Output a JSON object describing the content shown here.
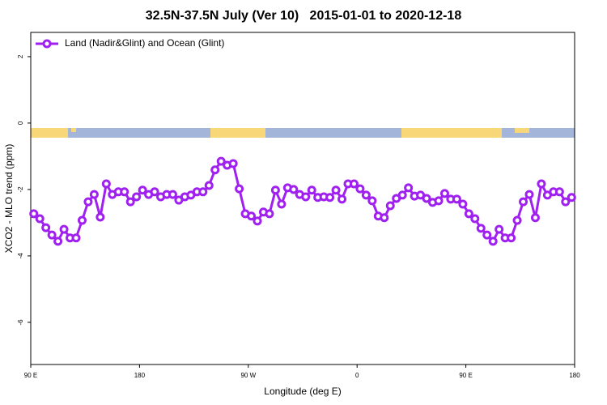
{
  "chart_data": {
    "type": "line",
    "title": "32.5N-37.5N July (Ver 10)   2015-01-01 to 2020-12-18",
    "xlabel": "Longitude (deg E)",
    "ylabel": "XCO2 - MLO trend (ppm)",
    "xlim": [
      90,
      540
    ],
    "ylim": [
      -7.27,
      2.73
    ],
    "xticks": [
      {
        "value": 90,
        "label": "90 E"
      },
      180,
      {
        "value": 270,
        "label": "90 W"
      },
      {
        "value": 360,
        "label": "0"
      },
      {
        "value": 450,
        "label": "90 E"
      },
      {
        "value": 540,
        "label": "180"
      }
    ],
    "yticks": [
      -6,
      -4,
      -2,
      0,
      2
    ],
    "legend": "top-left",
    "x": [
      92.5,
      97.5,
      102.5,
      107.5,
      112.5,
      117.5,
      122.5,
      127.5,
      132.5,
      137.5,
      142.5,
      147.5,
      152.5,
      157.5,
      162.5,
      167.5,
      172.5,
      177.5,
      182.5,
      187.5,
      192.5,
      197.5,
      202.5,
      207.5,
      212.5,
      217.5,
      222.5,
      227.5,
      232.5,
      237.5,
      242.5,
      247.5,
      252.5,
      257.5,
      262.5,
      267.5,
      272.5,
      277.5,
      282.5,
      287.5,
      292.5,
      297.5,
      302.5,
      307.5,
      312.5,
      317.5,
      322.5,
      327.5,
      332.5,
      337.5,
      342.5,
      347.5,
      352.5,
      357.5,
      362.5,
      367.5,
      372.5,
      377.5,
      382.5,
      387.5,
      392.5,
      397.5,
      402.5,
      407.5,
      412.5,
      417.5,
      422.5,
      427.5,
      432.5,
      437.5,
      442.5,
      447.5,
      452.5,
      457.5,
      462.5,
      467.5,
      472.5,
      477.5,
      482.5,
      487.5,
      492.5,
      497.5,
      502.5,
      507.5,
      512.5,
      517.5,
      522.5,
      527.5,
      532.5,
      537.5
    ],
    "series": [
      {
        "name": "Land (Nadir&Glint) and Ocean (Glint)",
        "color": "#a020f0",
        "values": [
          -2.73,
          -2.88,
          -3.15,
          -3.37,
          -3.56,
          -3.2,
          -3.46,
          -3.46,
          -2.93,
          -2.37,
          -2.15,
          -2.83,
          -1.83,
          -2.15,
          -2.07,
          -2.07,
          -2.37,
          -2.22,
          -2.02,
          -2.15,
          -2.07,
          -2.22,
          -2.15,
          -2.15,
          -2.32,
          -2.22,
          -2.17,
          -2.07,
          -2.07,
          -1.88,
          -1.41,
          -1.15,
          -1.27,
          -1.22,
          -1.98,
          -2.73,
          -2.8,
          -2.95,
          -2.68,
          -2.73,
          -2.02,
          -2.44,
          -1.95,
          -2.0,
          -2.15,
          -2.22,
          -2.02,
          -2.24,
          -2.22,
          -2.24,
          -2.02,
          -2.29,
          -1.83,
          -1.83,
          -1.98,
          -2.17,
          -2.34,
          -2.8,
          -2.85,
          -2.49,
          -2.27,
          -2.17,
          -1.95,
          -2.2,
          -2.17,
          -2.27,
          -2.39,
          -2.34,
          -2.12,
          -2.29,
          -2.29,
          -2.44,
          -2.73,
          -2.88,
          -3.17,
          -3.37,
          -3.56,
          -3.2,
          -3.46,
          -3.46,
          -2.93,
          -2.37,
          -2.15,
          -2.85,
          -1.83,
          -2.17,
          -2.07,
          -2.07,
          -2.37,
          -2.24
        ]
      }
    ]
  }
}
